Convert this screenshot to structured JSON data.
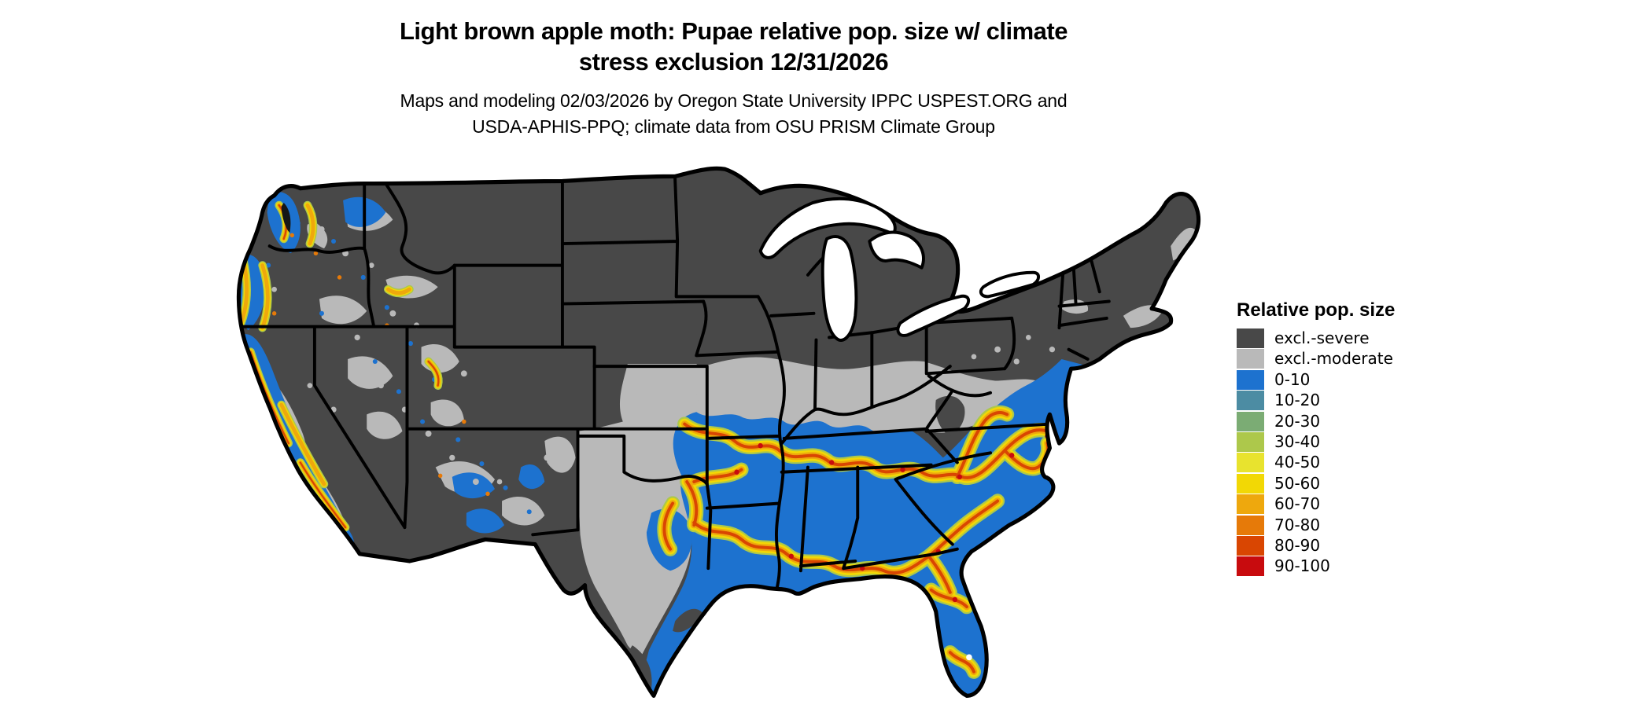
{
  "figure": {
    "title_line1": "Light brown apple moth: Pupae relative pop. size w/ climate",
    "title_line2": "stress exclusion 12/31/2026",
    "subtitle_line1": "Maps and modeling 02/03/2026 by Oregon State University IPPC USPEST.ORG and",
    "subtitle_line2": "USDA-APHIS-PPQ; climate data from OSU PRISM Climate Group"
  },
  "map": {
    "region": "Contiguous United States"
  },
  "legend": {
    "title": "Relative pop. size",
    "entries": [
      {
        "label": "excl.-severe",
        "color": "#484848"
      },
      {
        "label": "excl.-moderate",
        "color": "#b9b9b9"
      },
      {
        "label": "0-10",
        "color": "#1d72cf"
      },
      {
        "label": "10-20",
        "color": "#4c8ca3"
      },
      {
        "label": "20-30",
        "color": "#7bac74"
      },
      {
        "label": "30-40",
        "color": "#adc84b"
      },
      {
        "label": "40-50",
        "color": "#e8e32e"
      },
      {
        "label": "50-60",
        "color": "#f2d805"
      },
      {
        "label": "60-70",
        "color": "#eea80d"
      },
      {
        "label": "70-80",
        "color": "#e67a09"
      },
      {
        "label": "80-90",
        "color": "#d94602"
      },
      {
        "label": "90-100",
        "color": "#c80b0e"
      }
    ]
  }
}
